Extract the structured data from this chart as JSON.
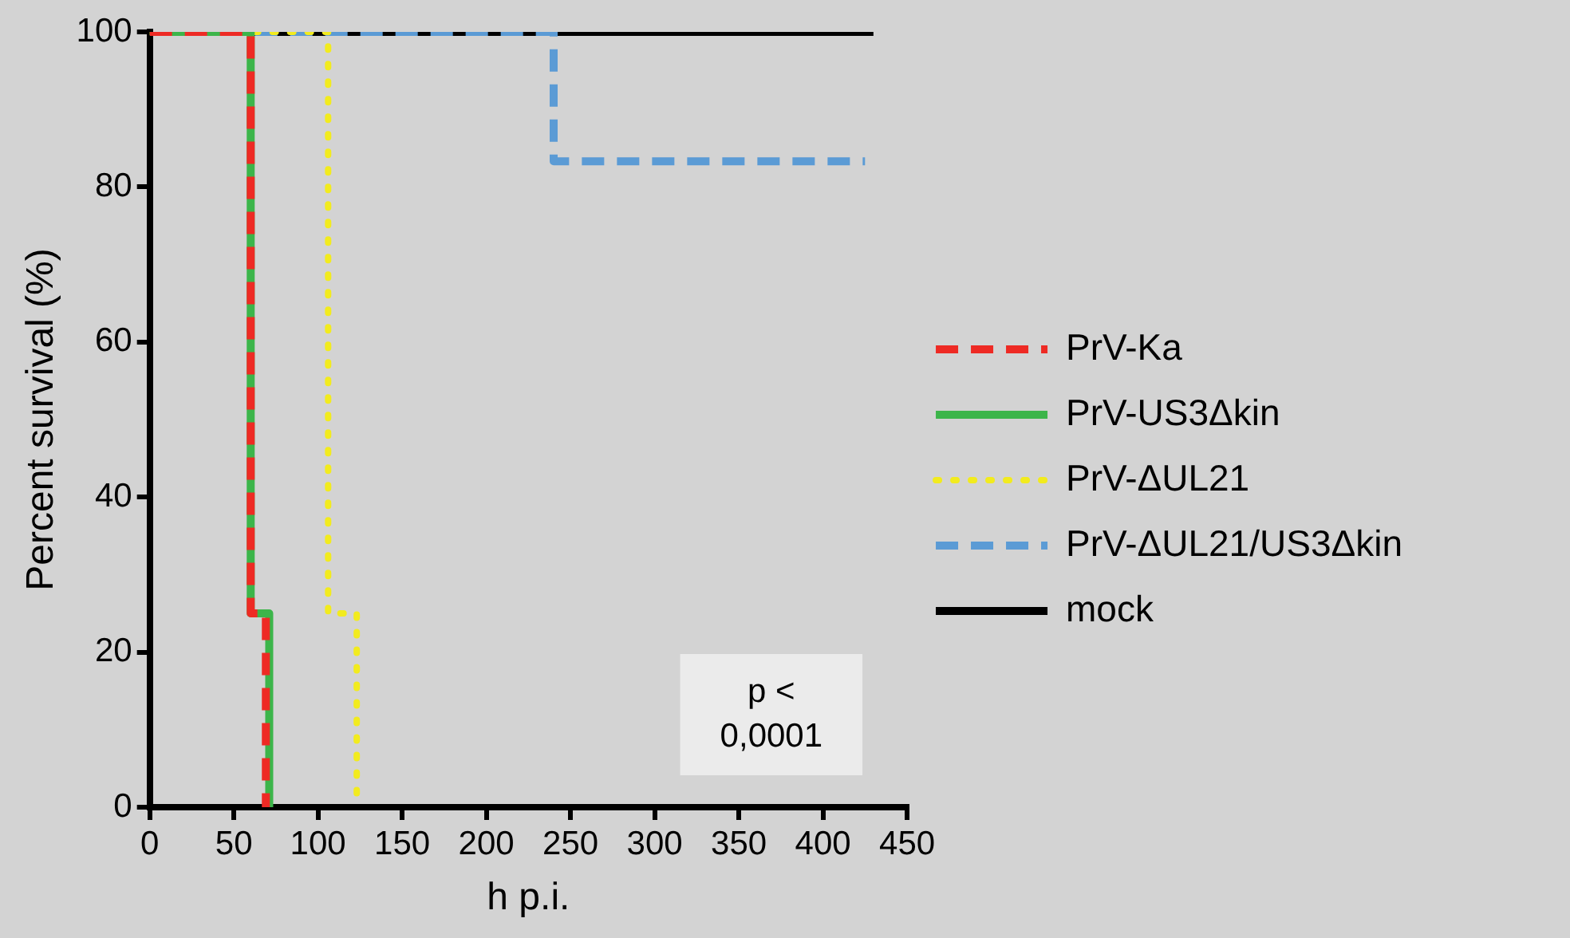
{
  "chart_data": {
    "type": "step",
    "xlabel": "h p.i.",
    "ylabel": "Percent survival (%)",
    "xlim": [
      0,
      450
    ],
    "xticks": [
      0,
      50,
      100,
      150,
      200,
      250,
      300,
      350,
      400,
      450
    ],
    "ylim": [
      0,
      100
    ],
    "yticks": [
      0,
      20,
      40,
      60,
      80,
      100
    ],
    "grid": false,
    "legend": "right",
    "annotations": [
      "p <\n0,0001"
    ],
    "series": [
      {
        "name": "PrV-Ka",
        "color": "#ee2a24",
        "line_style": "dashed",
        "x": [
          0,
          60,
          69
        ],
        "values": [
          100,
          25,
          0
        ]
      },
      {
        "name": "PrV-US3Δkin",
        "color": "#3cb54a",
        "line_style": "solid",
        "x": [
          0,
          60,
          71
        ],
        "values": [
          100,
          25,
          0
        ]
      },
      {
        "name": "PrV-ΔUL21",
        "color": "#f2eb1e",
        "line_style": "dotted",
        "x": [
          0,
          106,
          123
        ],
        "values": [
          100,
          25,
          0
        ]
      },
      {
        "name": "PrV-ΔUL21/US3Δkin",
        "color": "#5b9bd5",
        "line_style": "dashed",
        "x": [
          0,
          240,
          425
        ],
        "values": [
          100,
          83.3,
          83.3
        ]
      },
      {
        "name": "mock",
        "color": "#000000",
        "line_style": "solid",
        "x": [
          0,
          430
        ],
        "values": [
          100,
          100
        ]
      }
    ]
  }
}
